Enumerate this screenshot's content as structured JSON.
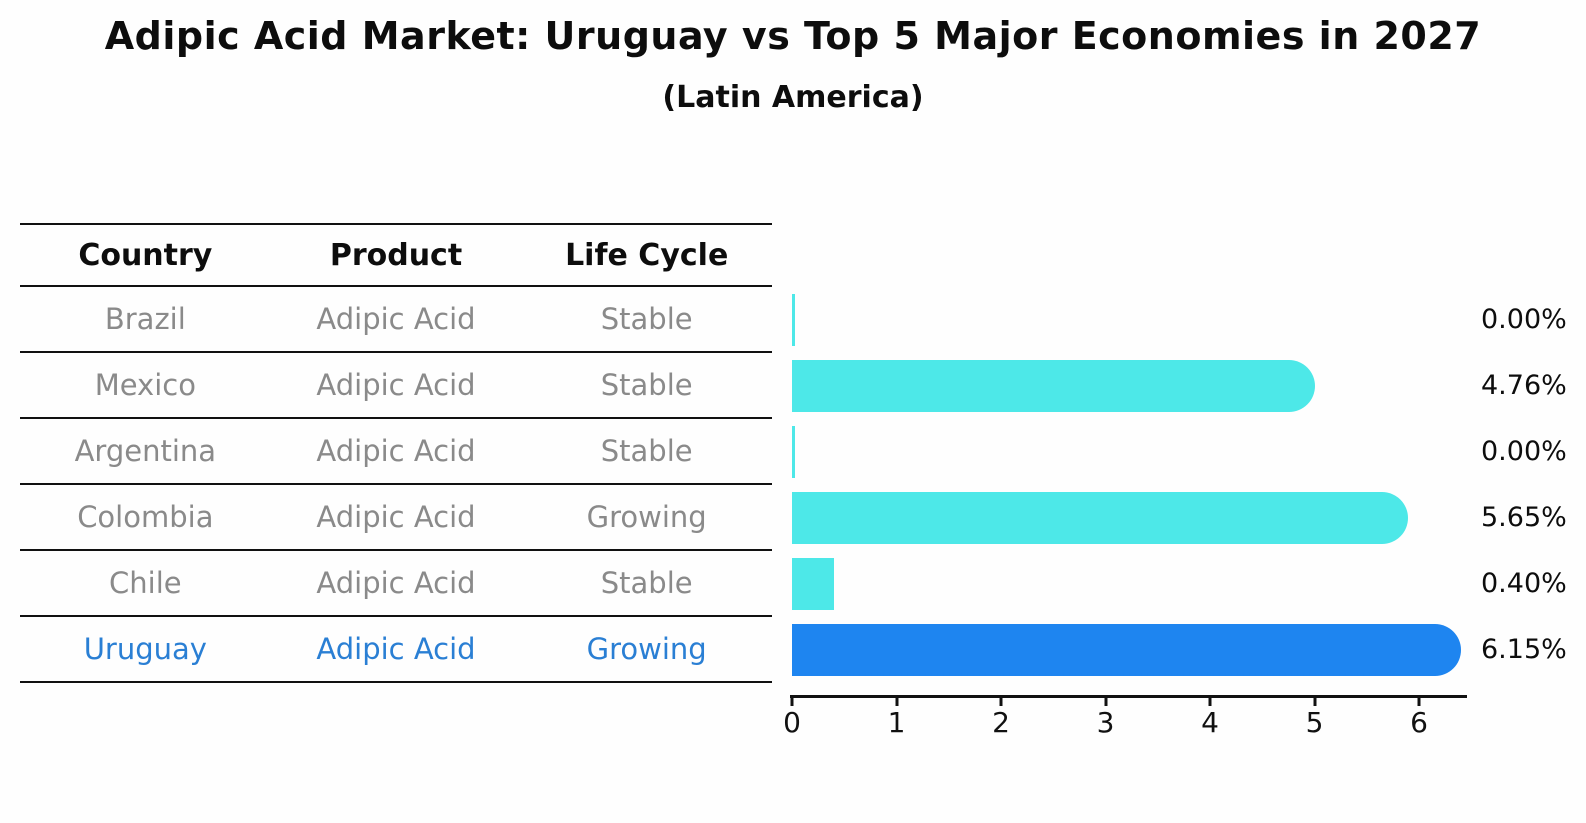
{
  "title": "Adipic Acid Market: Uruguay vs Top 5 Major Economies in 2027",
  "subtitle": "(Latin America)",
  "table": {
    "headers": [
      "Country",
      "Product",
      "Life Cycle"
    ],
    "rows": [
      {
        "country": "Brazil",
        "product": "Adipic Acid",
        "life_cycle": "Stable",
        "highlighted": false
      },
      {
        "country": "Mexico",
        "product": "Adipic Acid",
        "life_cycle": "Stable",
        "highlighted": false
      },
      {
        "country": "Argentina",
        "product": "Adipic Acid",
        "life_cycle": "Stable",
        "highlighted": false
      },
      {
        "country": "Colombia",
        "product": "Adipic Acid",
        "life_cycle": "Growing",
        "highlighted": false
      },
      {
        "country": "Chile",
        "product": "Adipic Acid",
        "life_cycle": "Stable",
        "highlighted": false
      },
      {
        "country": "Uruguay",
        "product": "Adipic Acid",
        "life_cycle": "Growing",
        "highlighted": true
      }
    ]
  },
  "chart_data": {
    "type": "bar",
    "orientation": "horizontal",
    "categories": [
      "Brazil",
      "Mexico",
      "Argentina",
      "Colombia",
      "Chile",
      "Uruguay"
    ],
    "values": [
      0.0,
      4.76,
      0.0,
      5.65,
      0.4,
      6.15
    ],
    "value_labels": [
      "0.00%",
      "4.76%",
      "0.00%",
      "5.65%",
      "0.40%",
      "6.15%"
    ],
    "unit_suffix": "%",
    "xlim": [
      0,
      6.5
    ],
    "x_ticks": [
      0,
      1,
      2,
      3,
      4,
      5,
      6
    ],
    "grid": false,
    "legend": "none",
    "highlight_index": 5,
    "colors": {
      "default_bar": "#4de8e8",
      "highlight_bar": "#1e85f0",
      "highlight_text": "#2a7fd4",
      "row_text": "#8a8a8a",
      "text": "#0d0d0d"
    }
  }
}
